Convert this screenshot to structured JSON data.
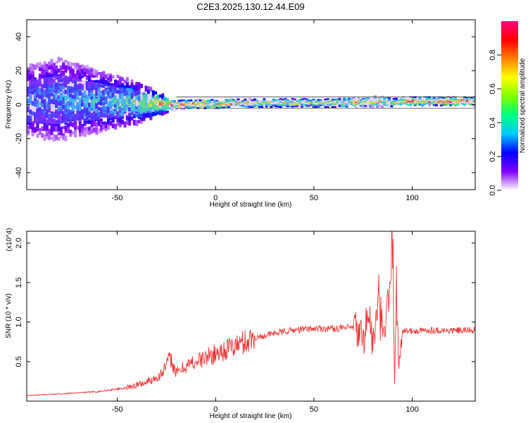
{
  "title": "C2E3.2025.130.12.44.E09",
  "chart_data": [
    {
      "type": "heatmap",
      "xlabel": "Height of straight line (km)",
      "ylabel": "Frequency (Hz)",
      "xlim": [
        -96,
        132
      ],
      "ylim": [
        -50,
        50
      ],
      "xticks": [
        -50,
        0,
        50,
        100
      ],
      "yticks": [
        -40,
        -20,
        0,
        20,
        40
      ],
      "colorbar": {
        "label": "Normalized spectral amplitude",
        "ticks": [
          0.0,
          0.2,
          0.4,
          0.6,
          0.8
        ],
        "range": [
          0,
          1
        ],
        "colormap": [
          "#ffffff",
          "#8000ff",
          "#0000ff",
          "#00c8ff",
          "#00ff80",
          "#80ff00",
          "#ffff00",
          "#ff8000",
          "#ff0000",
          "#ff0080"
        ]
      },
      "signal_band": {
        "x": [
          -96,
          -80,
          -60,
          -40,
          -25,
          -20,
          0,
          20,
          40,
          60,
          75,
          85,
          90,
          95,
          110,
          132
        ],
        "center_hz": [
          2,
          3,
          2,
          1,
          0,
          0,
          0.5,
          1,
          1,
          1,
          1.5,
          2,
          1,
          2,
          2,
          2
        ],
        "spread_hz": [
          14,
          16,
          12,
          8,
          3,
          2,
          2,
          2,
          2,
          2,
          2.5,
          3,
          2,
          2,
          2,
          2
        ],
        "amplitude": [
          0.35,
          0.35,
          0.4,
          0.55,
          0.9,
          0.9,
          0.9,
          0.7,
          0.65,
          0.7,
          0.8,
          0.7,
          0.6,
          0.9,
          0.95,
          0.95
        ]
      }
    },
    {
      "type": "line",
      "xlabel": "Height of straight line (km)",
      "ylabel": "SNR (10 * v/v)",
      "y_multiplier": "(x10^4)",
      "xlim": [
        -96,
        132
      ],
      "ylim": [
        0,
        2.15
      ],
      "xticks": [
        -50,
        0,
        50,
        100
      ],
      "yticks": [
        0.5,
        1.0,
        1.5,
        2.0
      ],
      "line_color": "#ee3333",
      "series": [
        {
          "x": [
            -96,
            -80,
            -60,
            -45,
            -35,
            -28,
            -25,
            -23,
            -20,
            -15,
            -10,
            -5,
            0,
            5,
            10,
            15,
            20,
            25,
            30,
            40,
            50,
            60,
            70,
            75,
            78,
            80,
            83,
            85,
            88,
            90,
            91,
            92,
            93,
            95,
            100,
            110,
            120,
            132
          ],
          "y": [
            0.07,
            0.09,
            0.12,
            0.17,
            0.24,
            0.33,
            0.45,
            0.55,
            0.35,
            0.45,
            0.5,
            0.55,
            0.6,
            0.65,
            0.7,
            0.75,
            0.8,
            0.83,
            0.86,
            0.9,
            0.92,
            0.92,
            0.93,
            0.8,
            1.1,
            0.7,
            1.25,
            0.8,
            1.2,
            2.15,
            0.3,
            1.55,
            0.4,
            0.9,
            0.88,
            0.9,
            0.89,
            0.9
          ]
        }
      ]
    }
  ]
}
